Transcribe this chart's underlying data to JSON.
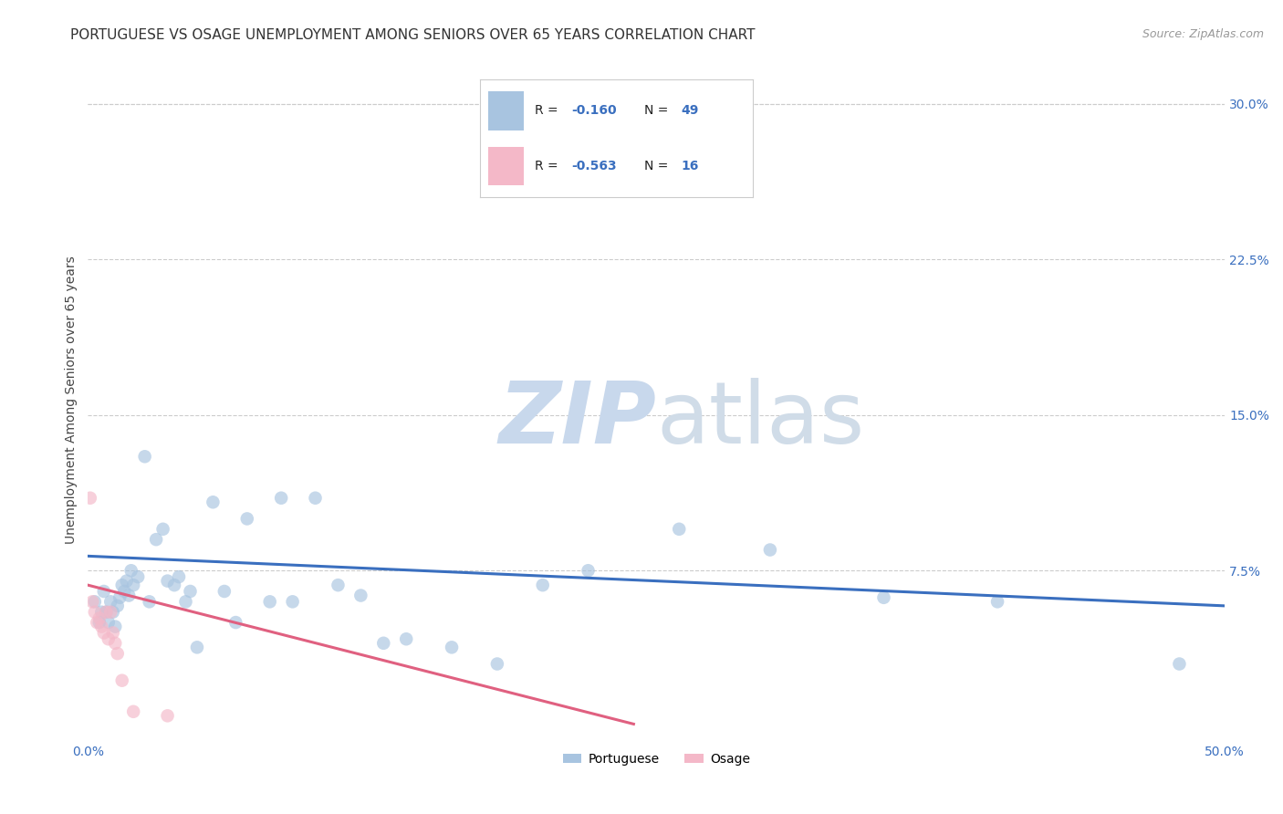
{
  "title": "PORTUGUESE VS OSAGE UNEMPLOYMENT AMONG SENIORS OVER 65 YEARS CORRELATION CHART",
  "source": "Source: ZipAtlas.com",
  "ylabel": "Unemployment Among Seniors over 65 years",
  "xlim": [
    0.0,
    0.5
  ],
  "ylim": [
    -0.005,
    0.32
  ],
  "xticks": [
    0.0,
    0.1,
    0.2,
    0.3,
    0.4,
    0.5
  ],
  "yticks": [
    0.075,
    0.15,
    0.225,
    0.3
  ],
  "ytick_labels": [
    "7.5%",
    "15.0%",
    "22.5%",
    "30.0%"
  ],
  "xtick_labels": [
    "0.0%",
    "",
    "",
    "",
    "",
    "50.0%"
  ],
  "portuguese_color": "#a8c4e0",
  "osage_color": "#f4b8c8",
  "portuguese_line_color": "#3a6fbf",
  "osage_line_color": "#e06080",
  "background_color": "#ffffff",
  "legend_R_portuguese": "-0.160",
  "legend_N_portuguese": "49",
  "legend_R_osage": "-0.563",
  "legend_N_osage": "16",
  "portuguese_x": [
    0.003,
    0.005,
    0.006,
    0.007,
    0.008,
    0.009,
    0.01,
    0.011,
    0.012,
    0.013,
    0.014,
    0.015,
    0.016,
    0.017,
    0.018,
    0.019,
    0.02,
    0.022,
    0.025,
    0.027,
    0.03,
    0.033,
    0.035,
    0.038,
    0.04,
    0.043,
    0.045,
    0.048,
    0.055,
    0.06,
    0.065,
    0.07,
    0.08,
    0.085,
    0.09,
    0.1,
    0.11,
    0.12,
    0.13,
    0.14,
    0.16,
    0.18,
    0.2,
    0.22,
    0.26,
    0.3,
    0.35,
    0.4,
    0.48
  ],
  "portuguese_y": [
    0.06,
    0.05,
    0.055,
    0.065,
    0.055,
    0.05,
    0.06,
    0.055,
    0.048,
    0.058,
    0.062,
    0.068,
    0.065,
    0.07,
    0.063,
    0.075,
    0.068,
    0.072,
    0.13,
    0.06,
    0.09,
    0.095,
    0.07,
    0.068,
    0.072,
    0.06,
    0.065,
    0.038,
    0.108,
    0.065,
    0.05,
    0.1,
    0.06,
    0.11,
    0.06,
    0.11,
    0.068,
    0.063,
    0.04,
    0.042,
    0.038,
    0.03,
    0.068,
    0.075,
    0.095,
    0.085,
    0.062,
    0.06,
    0.03
  ],
  "osage_x": [
    0.001,
    0.002,
    0.003,
    0.004,
    0.005,
    0.006,
    0.007,
    0.008,
    0.009,
    0.01,
    0.011,
    0.012,
    0.013,
    0.015,
    0.02,
    0.035
  ],
  "osage_y": [
    0.11,
    0.06,
    0.055,
    0.05,
    0.052,
    0.048,
    0.045,
    0.055,
    0.042,
    0.055,
    0.045,
    0.04,
    0.035,
    0.022,
    0.007,
    0.005
  ],
  "portuguese_trendline_x": [
    0.0,
    0.5
  ],
  "portuguese_trendline_y": [
    0.082,
    0.058
  ],
  "osage_trendline_x": [
    0.0,
    0.24
  ],
  "osage_trendline_y": [
    0.068,
    0.001
  ],
  "marker_size": 110,
  "marker_alpha": 0.65,
  "grid_color": "#cccccc",
  "grid_style": "--",
  "title_fontsize": 11,
  "label_fontsize": 10,
  "tick_fontsize": 10,
  "watermark_color": "#ccd8e8",
  "source_color": "#999999"
}
